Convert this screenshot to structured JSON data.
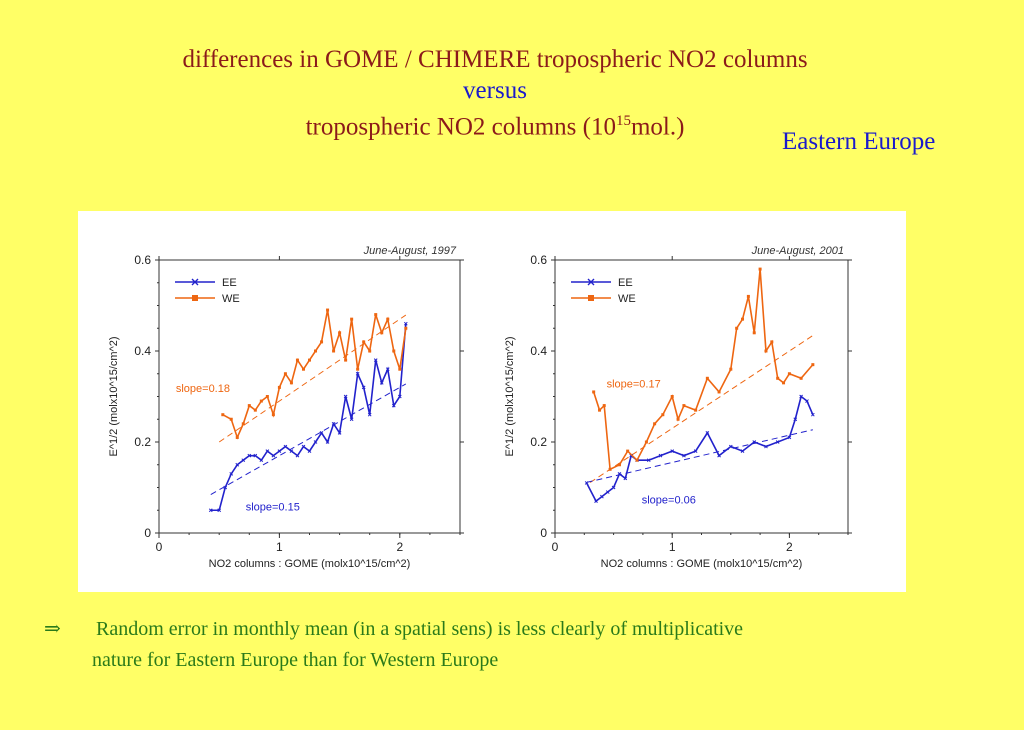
{
  "slide": {
    "title_line1": "differences  in  GOME / CHIMERE tropospheric NO2 columns",
    "title_line2": "versus",
    "title_line3_pre": "tropospheric NO2 columns (10",
    "title_line3_sup": "15",
    "title_line3_post": "mol.)",
    "region_label": "Eastern Europe",
    "conclusion_arrow": "⇒",
    "conclusion_line1": "Random error in monthly mean (in a spatial sens) is less clearly of multiplicative",
    "conclusion_line2": "nature for Eastern Europe than for Western Europe"
  },
  "chart_data": [
    {
      "type": "line",
      "title": "June-August, 1997",
      "xlabel": "NO2 columns : GOME (molx10^15/cm^2)",
      "ylabel": "E^1/2 (molx10^15/cm^2)",
      "xlim": [
        0,
        2.5
      ],
      "ylim": [
        0,
        0.6
      ],
      "xticks": [
        "0",
        "1",
        "2"
      ],
      "yticks": [
        "0",
        "0.2",
        "0.4",
        "0.6"
      ],
      "legend_position": "top-left",
      "series": [
        {
          "name": "EE",
          "color": "#2222cc",
          "marker": "x",
          "x": [
            0.43,
            0.5,
            0.55,
            0.6,
            0.65,
            0.7,
            0.75,
            0.8,
            0.85,
            0.9,
            0.95,
            1.0,
            1.05,
            1.1,
            1.15,
            1.2,
            1.25,
            1.3,
            1.35,
            1.4,
            1.45,
            1.5,
            1.55,
            1.6,
            1.65,
            1.7,
            1.75,
            1.8,
            1.85,
            1.9,
            1.95,
            2.0,
            2.05
          ],
          "y": [
            0.05,
            0.05,
            0.1,
            0.13,
            0.15,
            0.16,
            0.17,
            0.17,
            0.16,
            0.18,
            0.17,
            0.18,
            0.19,
            0.18,
            0.17,
            0.19,
            0.18,
            0.2,
            0.22,
            0.2,
            0.24,
            0.22,
            0.3,
            0.25,
            0.35,
            0.32,
            0.26,
            0.38,
            0.33,
            0.36,
            0.28,
            0.3,
            0.46
          ]
        },
        {
          "name": "WE",
          "color": "#ee6611",
          "marker": "square",
          "x": [
            0.53,
            0.6,
            0.65,
            0.7,
            0.75,
            0.8,
            0.85,
            0.9,
            0.95,
            1.0,
            1.05,
            1.1,
            1.15,
            1.2,
            1.25,
            1.3,
            1.35,
            1.4,
            1.45,
            1.5,
            1.55,
            1.6,
            1.65,
            1.7,
            1.75,
            1.8,
            1.85,
            1.9,
            1.95,
            2.0,
            2.05
          ],
          "y": [
            0.26,
            0.25,
            0.21,
            0.24,
            0.28,
            0.27,
            0.29,
            0.3,
            0.26,
            0.32,
            0.35,
            0.33,
            0.38,
            0.36,
            0.38,
            0.4,
            0.42,
            0.49,
            0.4,
            0.44,
            0.38,
            0.47,
            0.36,
            0.42,
            0.4,
            0.48,
            0.44,
            0.47,
            0.4,
            0.36,
            0.45
          ]
        }
      ],
      "fits": [
        {
          "series": "WE",
          "label": "slope=0.18",
          "slope": 0.18,
          "intercept": 0.11,
          "x_range": [
            0.5,
            2.05
          ]
        },
        {
          "series": "EE",
          "label": "slope=0.15",
          "slope": 0.15,
          "intercept": 0.02,
          "x_range": [
            0.43,
            2.05
          ]
        }
      ]
    },
    {
      "type": "line",
      "title": "June-August, 2001",
      "xlabel": "NO2 columns : GOME (molx10^15/cm^2)",
      "ylabel": "E^1/2 (molx10^15/cm^2)",
      "xlim": [
        0,
        2.5
      ],
      "ylim": [
        0,
        0.6
      ],
      "xticks": [
        "0",
        "1",
        "2"
      ],
      "yticks": [
        "0",
        "0.2",
        "0.4",
        "0.6"
      ],
      "legend_position": "top-left",
      "series": [
        {
          "name": "EE",
          "color": "#2222cc",
          "marker": "x",
          "x": [
            0.27,
            0.35,
            0.4,
            0.45,
            0.5,
            0.55,
            0.6,
            0.65,
            0.7,
            0.8,
            0.9,
            1.0,
            1.1,
            1.2,
            1.3,
            1.4,
            1.5,
            1.6,
            1.7,
            1.8,
            1.9,
            2.0,
            2.05,
            2.1,
            2.15,
            2.2
          ],
          "y": [
            0.11,
            0.07,
            0.08,
            0.09,
            0.1,
            0.13,
            0.12,
            0.17,
            0.16,
            0.16,
            0.17,
            0.18,
            0.17,
            0.18,
            0.22,
            0.17,
            0.19,
            0.18,
            0.2,
            0.19,
            0.2,
            0.21,
            0.25,
            0.3,
            0.29,
            0.26
          ]
        },
        {
          "name": "WE",
          "color": "#ee6611",
          "marker": "square",
          "x": [
            0.33,
            0.38,
            0.42,
            0.47,
            0.55,
            0.62,
            0.7,
            0.78,
            0.85,
            0.92,
            1.0,
            1.05,
            1.1,
            1.2,
            1.3,
            1.4,
            1.5,
            1.55,
            1.6,
            1.65,
            1.7,
            1.75,
            1.8,
            1.85,
            1.9,
            1.95,
            2.0,
            2.1,
            2.2
          ],
          "y": [
            0.31,
            0.27,
            0.28,
            0.14,
            0.15,
            0.18,
            0.16,
            0.2,
            0.24,
            0.26,
            0.3,
            0.25,
            0.28,
            0.27,
            0.34,
            0.31,
            0.36,
            0.45,
            0.47,
            0.52,
            0.44,
            0.58,
            0.4,
            0.42,
            0.34,
            0.33,
            0.35,
            0.34,
            0.37
          ]
        }
      ],
      "fits": [
        {
          "series": "WE",
          "label": "slope=0.17",
          "slope": 0.17,
          "intercept": 0.06,
          "x_range": [
            0.3,
            2.2
          ]
        },
        {
          "series": "EE",
          "label": "slope=0.06",
          "slope": 0.06,
          "intercept": 0.095,
          "x_range": [
            0.27,
            2.2
          ]
        }
      ]
    }
  ]
}
